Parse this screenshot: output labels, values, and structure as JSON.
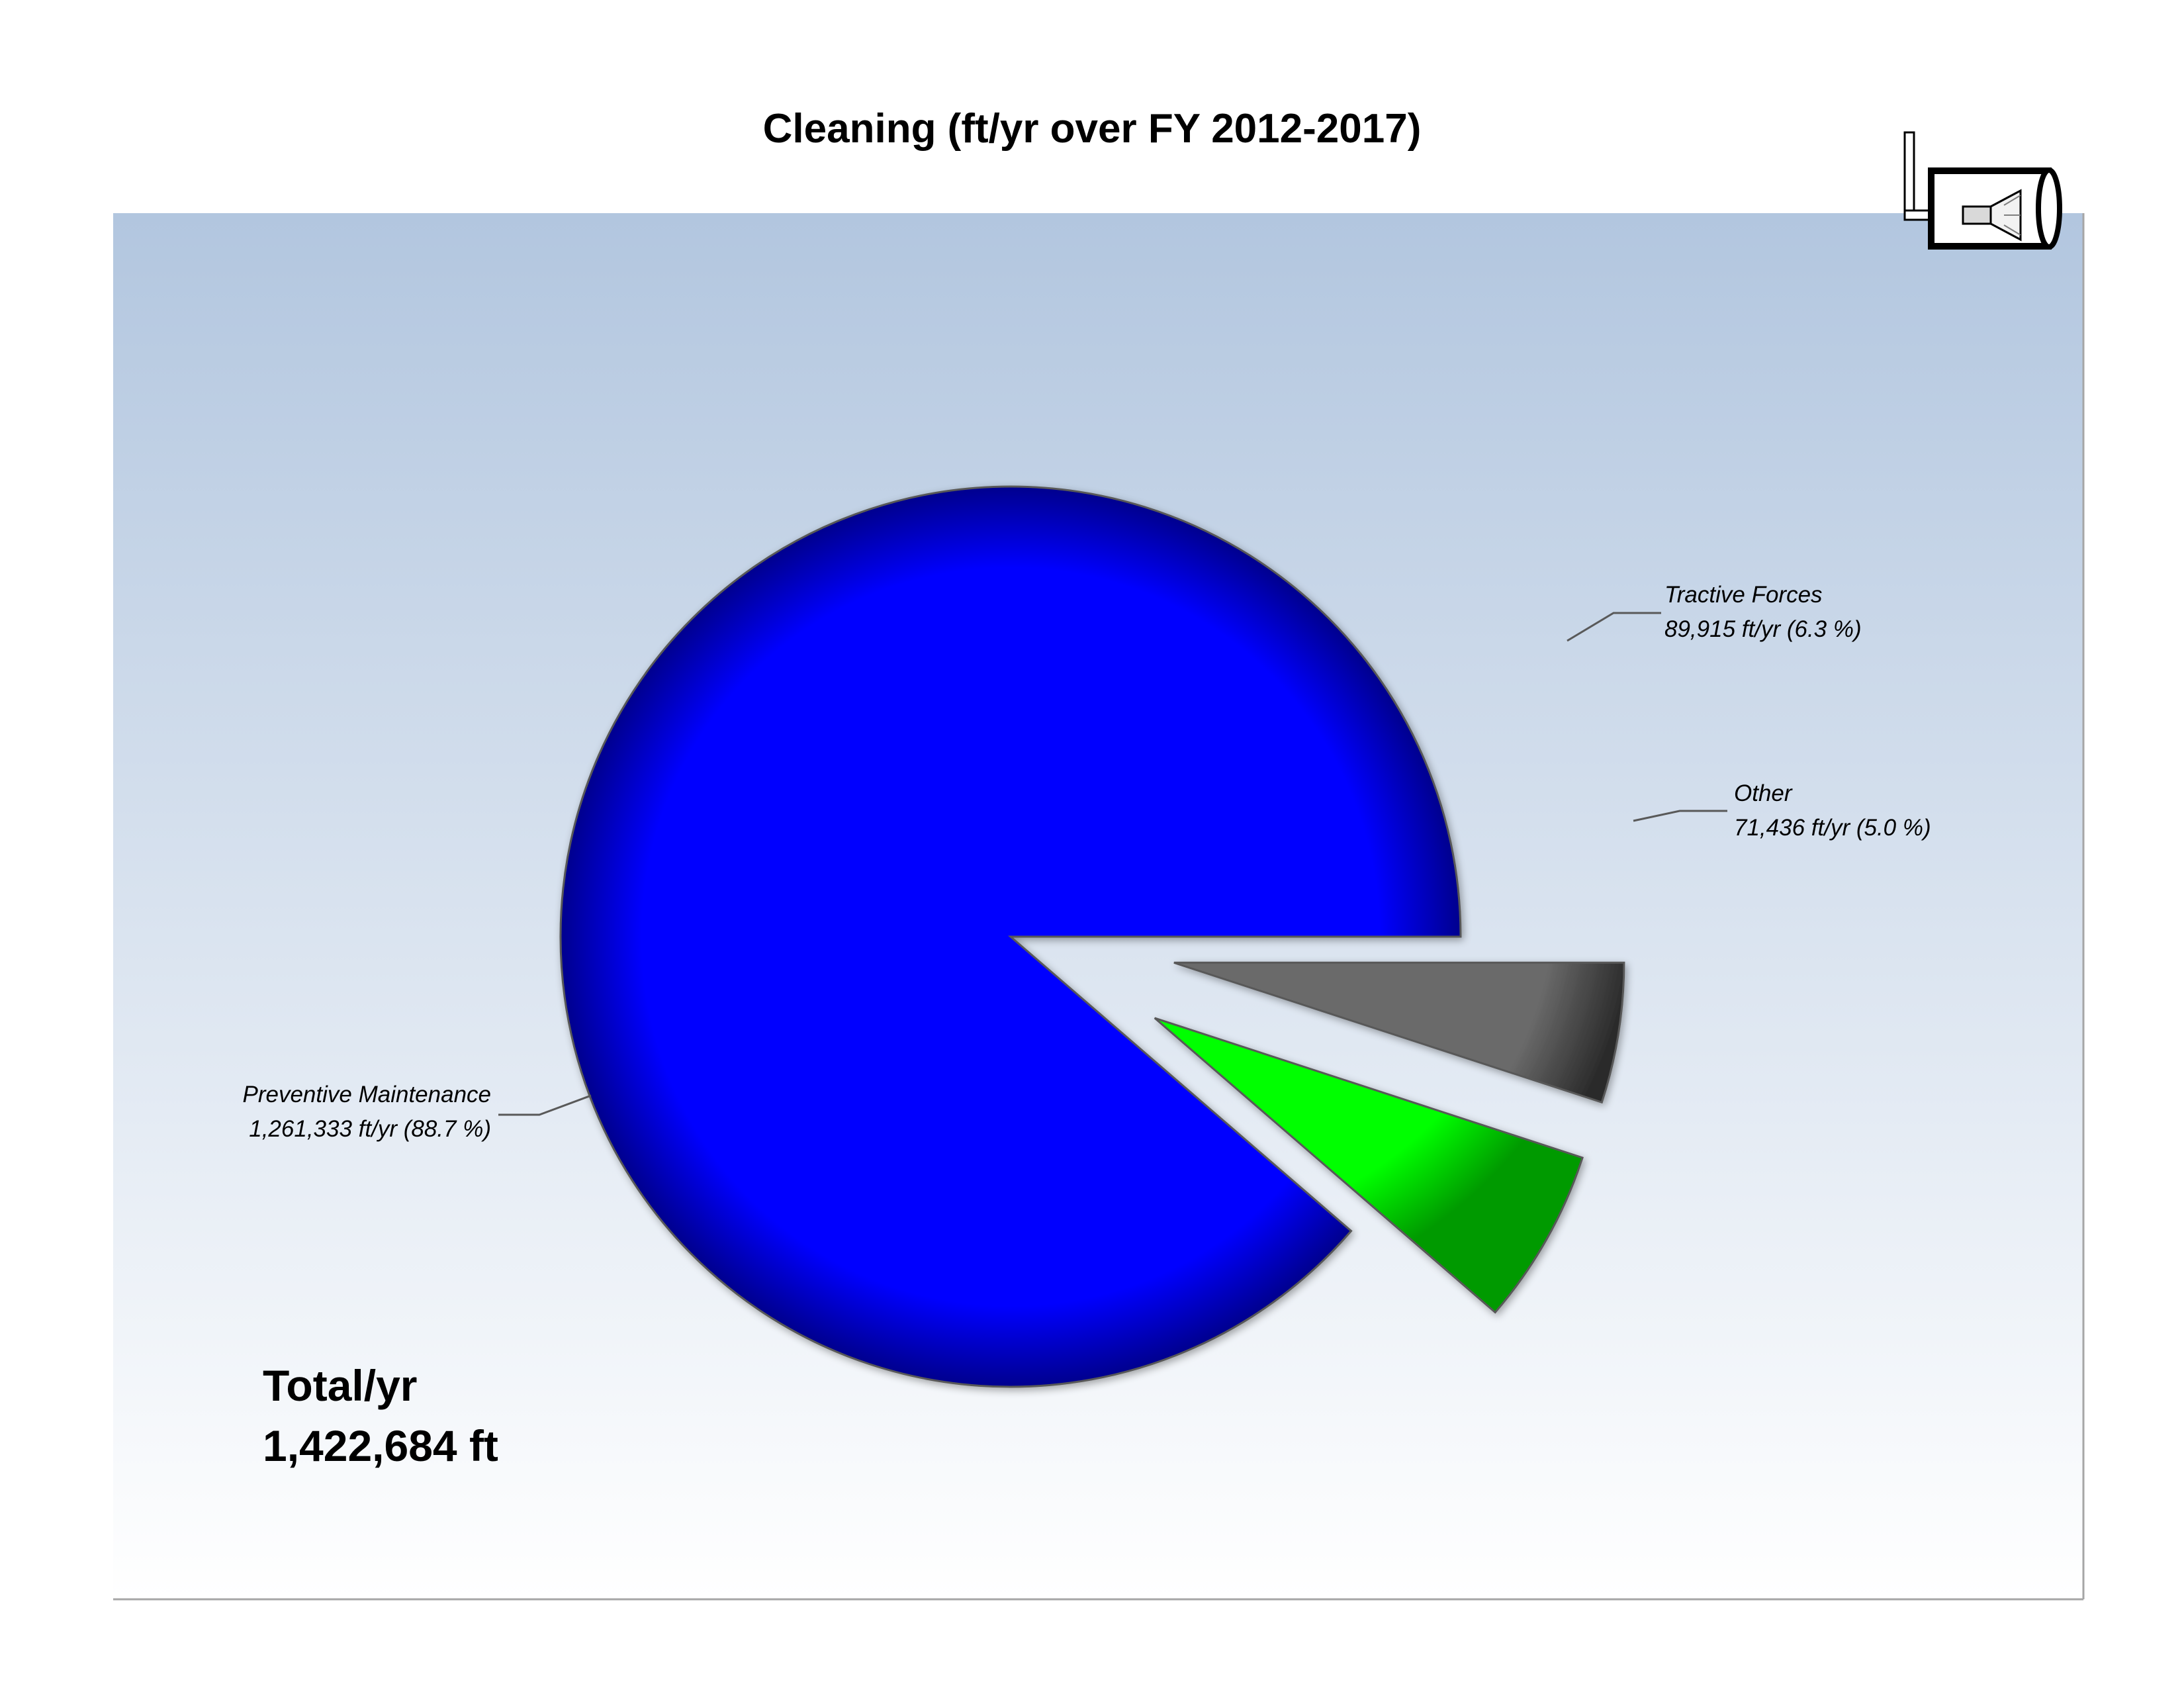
{
  "chart_data": {
    "type": "pie",
    "title": "Cleaning (ft/yr over FY 2012-2017)",
    "slices": [
      {
        "label": "Preventive Maintenance",
        "value": 1261333,
        "value_text": "1,261,333 ft/yr (88.7 %)",
        "percent": 88.7,
        "color": "#0000ff",
        "exploded": false
      },
      {
        "label": "Tractive Forces",
        "value": 89915,
        "value_text": "89,915 ft/yr (6.3 %)",
        "percent": 6.3,
        "color": "#00ff00",
        "exploded": true
      },
      {
        "label": "Other",
        "value": 71436,
        "value_text": "71,436 ft/yr (5.0 %)",
        "percent": 5.0,
        "color": "#6b6b6b",
        "exploded": true
      }
    ],
    "total": {
      "label": "Total/yr",
      "value": 1422684,
      "value_text": "1,422,684 ft"
    },
    "background_gradient": [
      "#b2c6df",
      "#ffffff"
    ],
    "legend": "none"
  },
  "icons": {
    "logo": "pipe-cleaning-nozzle-icon"
  }
}
